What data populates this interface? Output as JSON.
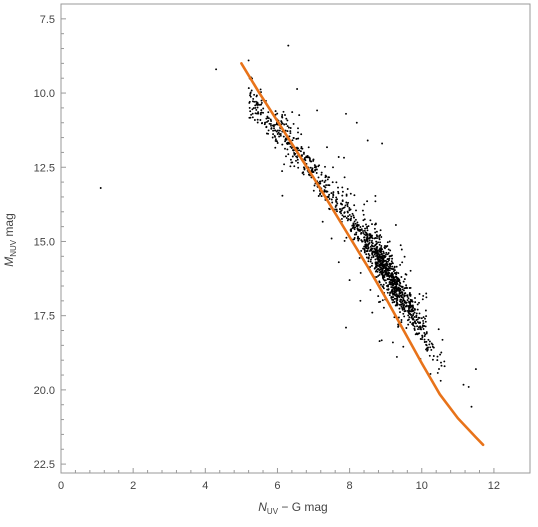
{
  "chart_data": {
    "type": "scatter",
    "title": "",
    "xlabel": {
      "main": "N",
      "sub": "UV",
      "rest": " − G   mag"
    },
    "ylabel": {
      "main": "M",
      "sub": "NUV",
      "rest": "   mag"
    },
    "xlim": [
      0,
      13
    ],
    "ylim": [
      22.8,
      7.0
    ],
    "y_inverted": true,
    "grid": false,
    "x_ticks": [
      0,
      2,
      4,
      6,
      8,
      10,
      12
    ],
    "x_tick_labels": [
      "0",
      "2",
      "4",
      "6",
      "8",
      "10",
      "12"
    ],
    "y_ticks": [
      7.5,
      10.0,
      12.5,
      15.0,
      17.5,
      20.0,
      22.5
    ],
    "y_tick_labels": [
      "7.5",
      "10.0",
      "12.5",
      "15.0",
      "17.5",
      "20.0",
      "22.5"
    ],
    "colors": {
      "points": "#000000",
      "fit": "#e8731a",
      "frame": "#999999"
    },
    "series": [
      {
        "type": "scatter",
        "count": 1400,
        "trend": {
          "x": [
            5.0,
            6.0,
            7.0,
            8.0,
            9.0,
            10.0,
            11.0,
            11.7
          ],
          "y": [
            9.9,
            11.2,
            12.6,
            14.2,
            15.9,
            17.9,
            20.0,
            21.4
          ]
        },
        "outliers": [
          [
            1.1,
            13.2
          ],
          [
            4.3,
            9.2
          ],
          [
            5.2,
            8.9
          ],
          [
            6.3,
            8.4
          ],
          [
            7.9,
            10.7
          ],
          [
            8.2,
            11.0
          ],
          [
            8.5,
            11.6
          ],
          [
            8.9,
            11.7
          ],
          [
            11.5,
            19.3
          ],
          [
            11.3,
            19.9
          ],
          [
            7.7,
            15.7
          ],
          [
            7.9,
            17.9
          ],
          [
            7.5,
            14.9
          ],
          [
            8.0,
            16.3
          ],
          [
            8.3,
            17.0
          ],
          [
            9.2,
            18.4
          ]
        ]
      },
      {
        "type": "line",
        "x": [
          5.0,
          5.5,
          6.0,
          6.5,
          7.0,
          7.5,
          8.0,
          8.5,
          9.0,
          9.5,
          10.0,
          10.5,
          11.0,
          11.5,
          11.7
        ],
        "y": [
          9.0,
          10.0,
          10.95,
          11.9,
          12.85,
          13.85,
          14.85,
          15.85,
          16.9,
          18.0,
          19.1,
          20.15,
          20.95,
          21.6,
          21.85
        ]
      }
    ]
  }
}
